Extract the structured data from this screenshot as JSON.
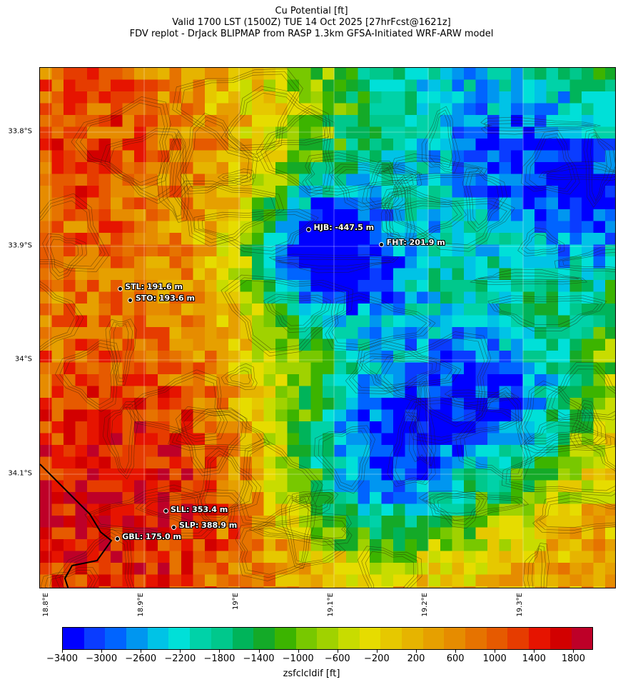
{
  "title": {
    "line1": "Cu Potential [ft]",
    "line2": "Valid 1700 LST (1500Z) TUE 14 Oct 2025 [27hrFcst@1621z]",
    "line3": "FDV replot - DrJack BLIPMAP from RASP 1.3km GFSA-Initiated WRF-ARW model"
  },
  "map": {
    "lat_labels": [
      "33.8°S",
      "33.9°S",
      "34°S",
      "34.1°S"
    ],
    "lon_labels": [
      "18.8°E",
      "18.9°E",
      "19°E",
      "19.1°E",
      "19.2°E",
      "19.3°E"
    ],
    "stations": [
      {
        "id": "HJB",
        "label": "HJB: -447.5 m",
        "lat": -33.886,
        "lon": 19.076
      },
      {
        "id": "FHT",
        "label": "FHT: 201.9 m",
        "lat": -33.899,
        "lon": 19.153
      },
      {
        "id": "STL",
        "label": "STL: 191.6 m",
        "lat": -33.938,
        "lon": 18.877
      },
      {
        "id": "STO",
        "label": "STO: 193.6 m",
        "lat": -33.948,
        "lon": 18.888
      },
      {
        "id": "SLL",
        "label": "SLL: 353.4 m",
        "lat": -34.133,
        "lon": 18.925
      },
      {
        "id": "SLP",
        "label": "SLP: 388.9 m",
        "lat": -34.147,
        "lon": 18.934
      },
      {
        "id": "GBL",
        "label": "GBL: 175.0 m",
        "lat": -34.157,
        "lon": 18.874
      }
    ]
  },
  "colorbar": {
    "title": "zsfclcldif [ft]",
    "tick_labels": [
      "−3400",
      "−3000",
      "−2600",
      "−2200",
      "−1800",
      "−1400",
      "−1000",
      "−600",
      "−200",
      "200",
      "600",
      "1000",
      "1400",
      "1800"
    ],
    "min": -3400,
    "max": 2000,
    "colors": [
      "#0000ff",
      "#0a3cff",
      "#0064ff",
      "#0096f0",
      "#00c3e6",
      "#00e0d8",
      "#00d2a8",
      "#00c88c",
      "#00b45a",
      "#14aa28",
      "#3cb400",
      "#78c800",
      "#a0d200",
      "#c8dc00",
      "#e6dc00",
      "#e6c800",
      "#e6b400",
      "#e6a000",
      "#e68c00",
      "#e67300",
      "#e65a00",
      "#e63c00",
      "#e61400",
      "#d20000",
      "#be0028"
    ]
  }
}
